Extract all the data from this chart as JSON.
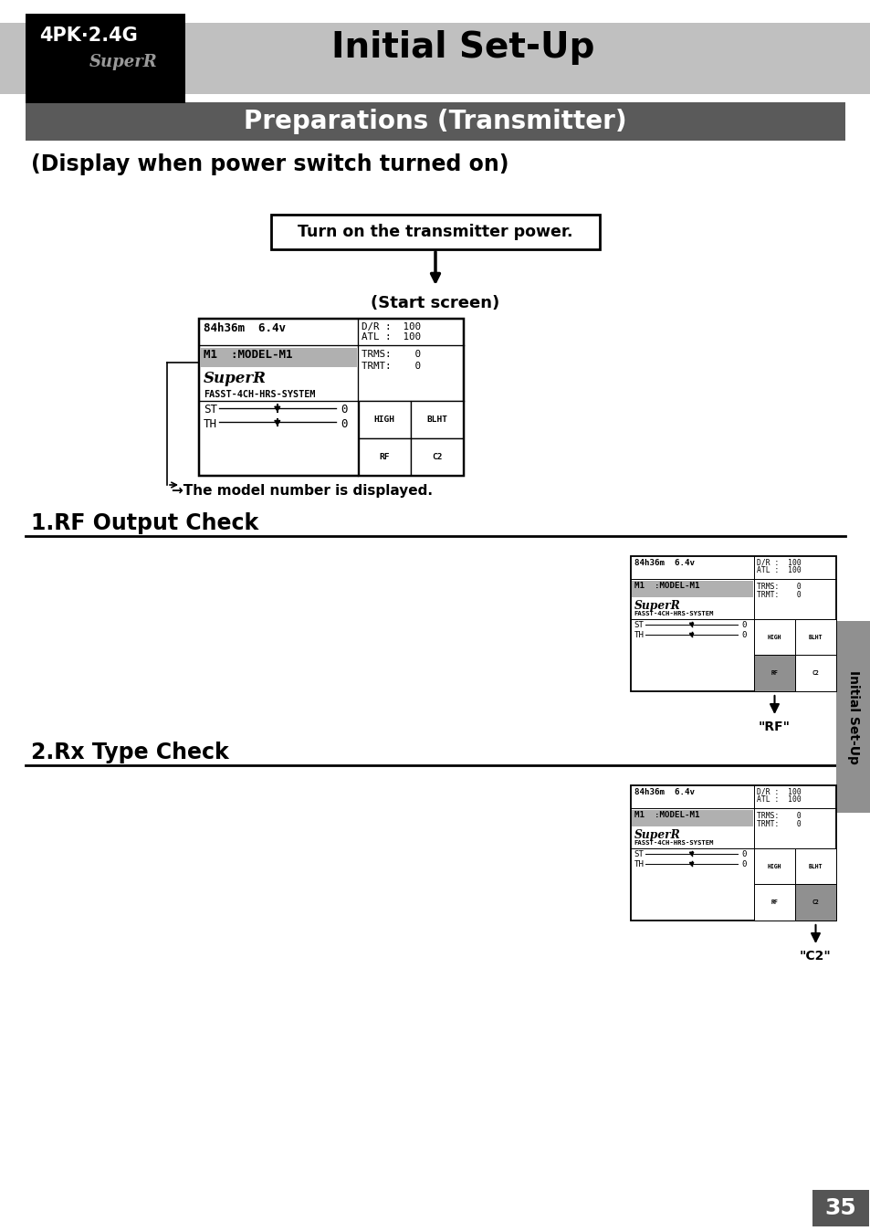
{
  "bg_color": "#ffffff",
  "title_text": "Initial Set-Up",
  "subtitle_text": "Preparations (Transmitter)",
  "section1_title": "(Display when power switch turned on)",
  "step1_box_text": "Turn on the transmitter power.",
  "start_screen_label": "(Start screen)",
  "model_note": "→The model number is displayed.",
  "section2_title": "1.RF Output Check",
  "section3_title": "2.Rx Type Check",
  "rf_label": "\"RF\"",
  "c2_label": "\"C2\"",
  "side_label": "Initial Set-Up",
  "page_number": "35",
  "logo_text1": "4PK·2.4G",
  "logo_subtext": "SuperR",
  "header_bar_color": "#c0c0c0",
  "subheader_bar_color": "#5a5a5a",
  "page_bg": "#ffffff"
}
